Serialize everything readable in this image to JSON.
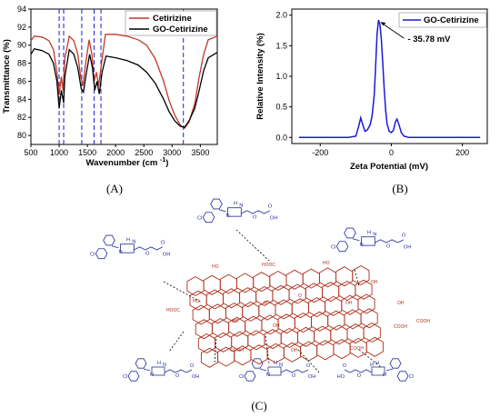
{
  "panel_labels": {
    "a": "(A)",
    "b": "(B)",
    "c": "(C)"
  },
  "colors": {
    "cetirizine": "#c0392b",
    "go_cetirizine": "#000000",
    "zeta_line": "#1a1ad6",
    "guide_lines": "#1a1ad6",
    "graphene": "#b0301c",
    "molecule": "#2b2f9e"
  },
  "chart_data": [
    {
      "type": "line",
      "xlabel": "Wavenumber (cm-1)",
      "ylabel": "Transmittance (%)",
      "xlim": [
        500,
        3800
      ],
      "ylim": [
        79,
        94
      ],
      "x_ticks": [
        500,
        1000,
        1500,
        2000,
        2500,
        3000,
        3500
      ],
      "y_ticks": [
        80,
        82,
        84,
        86,
        88,
        90,
        92,
        94
      ],
      "x_tick_labels": [
        "500",
        "1000",
        "1500",
        "2000",
        "2500",
        "3000",
        "3500"
      ],
      "y_tick_labels": [
        "80",
        "82",
        "84",
        "86",
        "88",
        "90",
        "92",
        "94"
      ],
      "legend_placement": "top-right",
      "vertical_guides": [
        1000,
        1080,
        1400,
        1620,
        1740,
        3200
      ],
      "series": [
        {
          "name": "Cetirizine",
          "color": "#c0392b",
          "points": [
            [
              500,
              90.5
            ],
            [
              560,
              91.0
            ],
            [
              700,
              90.9
            ],
            [
              820,
              90.5
            ],
            [
              900,
              89.5
            ],
            [
              960,
              87.0
            ],
            [
              1000,
              84.5
            ],
            [
              1040,
              86.5
            ],
            [
              1070,
              85.0
            ],
            [
              1100,
              88.5
            ],
            [
              1180,
              91.0
            ],
            [
              1260,
              90.5
            ],
            [
              1330,
              89.0
            ],
            [
              1380,
              86.5
            ],
            [
              1420,
              85.5
            ],
            [
              1460,
              87.5
            ],
            [
              1530,
              90.6
            ],
            [
              1580,
              89.0
            ],
            [
              1620,
              86.0
            ],
            [
              1660,
              87.0
            ],
            [
              1700,
              85.5
            ],
            [
              1750,
              88.0
            ],
            [
              1820,
              91.2
            ],
            [
              2000,
              91.2
            ],
            [
              2200,
              91.0
            ],
            [
              2400,
              90.6
            ],
            [
              2550,
              90.0
            ],
            [
              2700,
              88.5
            ],
            [
              2850,
              86.0
            ],
            [
              2950,
              83.8
            ],
            [
              3050,
              82.2
            ],
            [
              3150,
              81.1
            ],
            [
              3220,
              80.8
            ],
            [
              3300,
              81.5
            ],
            [
              3400,
              83.5
            ],
            [
              3480,
              86.5
            ],
            [
              3560,
              89.0
            ],
            [
              3640,
              90.6
            ],
            [
              3800,
              91.0
            ]
          ]
        },
        {
          "name": "GO-Cetirizine",
          "color": "#000000",
          "points": [
            [
              500,
              89.0
            ],
            [
              560,
              89.6
            ],
            [
              700,
              89.4
            ],
            [
              820,
              89.0
            ],
            [
              900,
              88.0
            ],
            [
              960,
              86.0
            ],
            [
              1000,
              83.0
            ],
            [
              1040,
              85.0
            ],
            [
              1080,
              83.6
            ],
            [
              1100,
              86.5
            ],
            [
              1180,
              89.5
            ],
            [
              1260,
              89.0
            ],
            [
              1330,
              87.5
            ],
            [
              1390,
              85.2
            ],
            [
              1430,
              84.8
            ],
            [
              1470,
              86.5
            ],
            [
              1540,
              89.0
            ],
            [
              1590,
              87.5
            ],
            [
              1630,
              85.0
            ],
            [
              1670,
              86.0
            ],
            [
              1710,
              84.6
            ],
            [
              1760,
              87.0
            ],
            [
              1830,
              88.8
            ],
            [
              2000,
              88.6
            ],
            [
              2200,
              88.3
            ],
            [
              2400,
              87.8
            ],
            [
              2550,
              87.0
            ],
            [
              2700,
              85.8
            ],
            [
              2850,
              84.0
            ],
            [
              2950,
              82.6
            ],
            [
              3050,
              81.6
            ],
            [
              3150,
              81.0
            ],
            [
              3220,
              80.9
            ],
            [
              3300,
              81.6
            ],
            [
              3400,
              83.0
            ],
            [
              3480,
              85.0
            ],
            [
              3560,
              87.2
            ],
            [
              3640,
              88.6
            ],
            [
              3800,
              89.2
            ]
          ]
        }
      ]
    },
    {
      "type": "line",
      "xlabel": "Zeta Potential (mV)",
      "ylabel": "Relative Intensity (%)",
      "xlim": [
        -280,
        270
      ],
      "ylim": [
        -0.1,
        2.1
      ],
      "x_ticks": [
        -200,
        0,
        200
      ],
      "y_ticks": [
        0.0,
        0.5,
        1.0,
        1.5,
        2.0
      ],
      "x_tick_labels": [
        "-200",
        "0",
        "200"
      ],
      "y_tick_labels": [
        "0.0",
        "0.5",
        "1.0",
        "1.5",
        "2.0"
      ],
      "legend_placement": "top-right",
      "annotation": "- 35.78 mV",
      "peak_x": -35.78,
      "series": [
        {
          "name": "GO-Cetirizine",
          "color": "#1a1ad6",
          "points": [
            [
              -260,
              0
            ],
            [
              -120,
              0
            ],
            [
              -100,
              0.02
            ],
            [
              -92,
              0.18
            ],
            [
              -86,
              0.32
            ],
            [
              -80,
              0.2
            ],
            [
              -74,
              0.1
            ],
            [
              -68,
              0.12
            ],
            [
              -60,
              0.2
            ],
            [
              -54,
              0.35
            ],
            [
              -48,
              0.7
            ],
            [
              -44,
              1.2
            ],
            [
              -40,
              1.7
            ],
            [
              -36,
              1.92
            ],
            [
              -32,
              1.85
            ],
            [
              -28,
              1.6
            ],
            [
              -24,
              1.2
            ],
            [
              -20,
              0.8
            ],
            [
              -16,
              0.45
            ],
            [
              -12,
              0.22
            ],
            [
              -6,
              0.1
            ],
            [
              0,
              0.08
            ],
            [
              6,
              0.12
            ],
            [
              12,
              0.26
            ],
            [
              16,
              0.3
            ],
            [
              22,
              0.2
            ],
            [
              28,
              0.08
            ],
            [
              36,
              0.02
            ],
            [
              50,
              0
            ],
            [
              250,
              0
            ]
          ]
        }
      ]
    }
  ],
  "diagram": {
    "graphene_labels": [
      "HO",
      "HOOC",
      "HO",
      "OH",
      "HO",
      "HOOC",
      "OH",
      "HO",
      "OH",
      "COOH",
      "OH",
      "COOH",
      "COOH",
      "COOH",
      "OH",
      "O",
      "O"
    ],
    "molecule_labels": [
      "Cl",
      "N",
      "N",
      "H",
      "O",
      "OH",
      "O"
    ]
  }
}
